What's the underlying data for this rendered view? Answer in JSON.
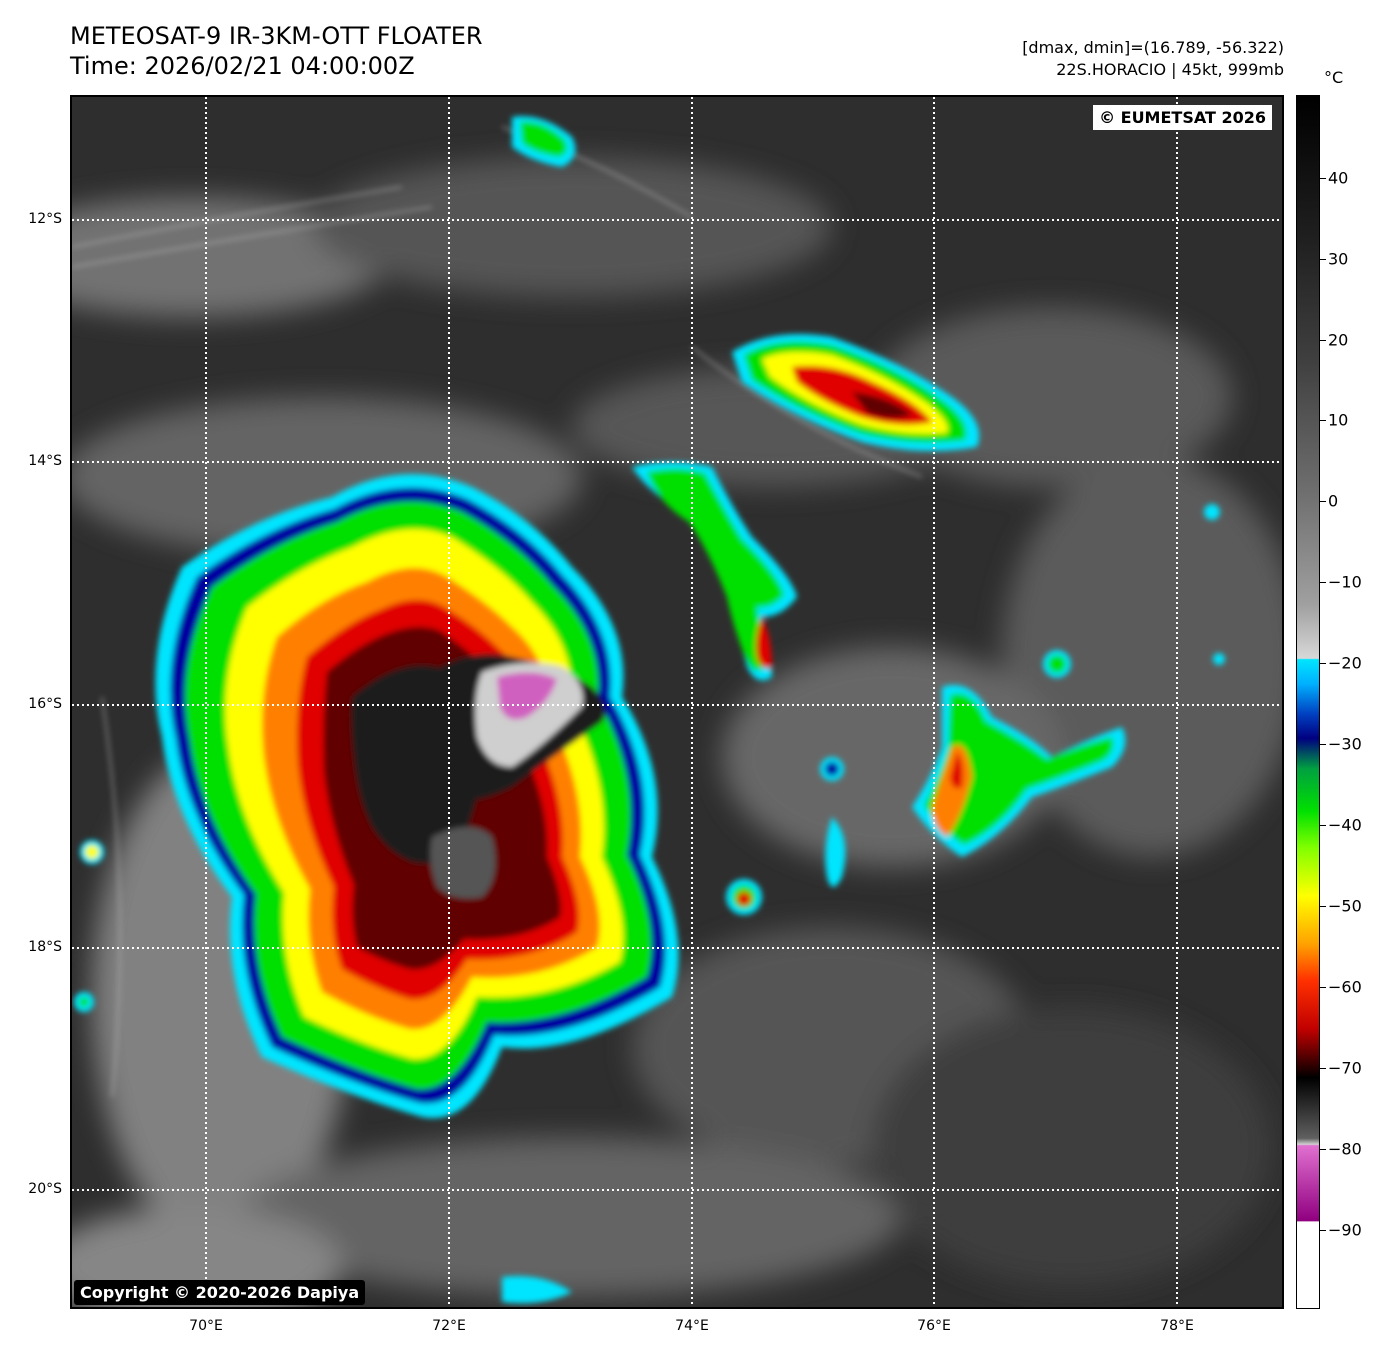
{
  "header": {
    "title_line1": "METEOSAT-9 IR-3KM-OTT FLOATER",
    "title_line2": "Time: 2026/02/21 04:00:00Z",
    "stats_line": "[dmax, dmin]=(16.789, -56.322)",
    "storm_line": "22S.HORACIO | 45kt, 999mb"
  },
  "map": {
    "lat_labels": [
      "12°S",
      "14°S",
      "16°S",
      "18°S",
      "20°S"
    ],
    "lon_labels": [
      "70°E",
      "72°E",
      "74°E",
      "76°E",
      "78°E"
    ],
    "watermark_top": "© EUMETSAT 2026",
    "watermark_bottom": "Copyright © 2020-2026 Dapiya",
    "grid": "dotted white"
  },
  "colorbar": {
    "unit": "°C",
    "ticks": [
      "40",
      "30",
      "20",
      "10",
      "0",
      "−10",
      "−20",
      "−30",
      "−40",
      "−50",
      "−60",
      "−70",
      "−80",
      "−90"
    ],
    "colors": {
      "cyan": "#00e5ff",
      "blue": "#0000a0",
      "green": "#00e000",
      "yellow": "#ffff00",
      "orange": "#ff8000",
      "red": "#e00000",
      "darkred": "#600000",
      "magenta": "#d060c0"
    }
  }
}
